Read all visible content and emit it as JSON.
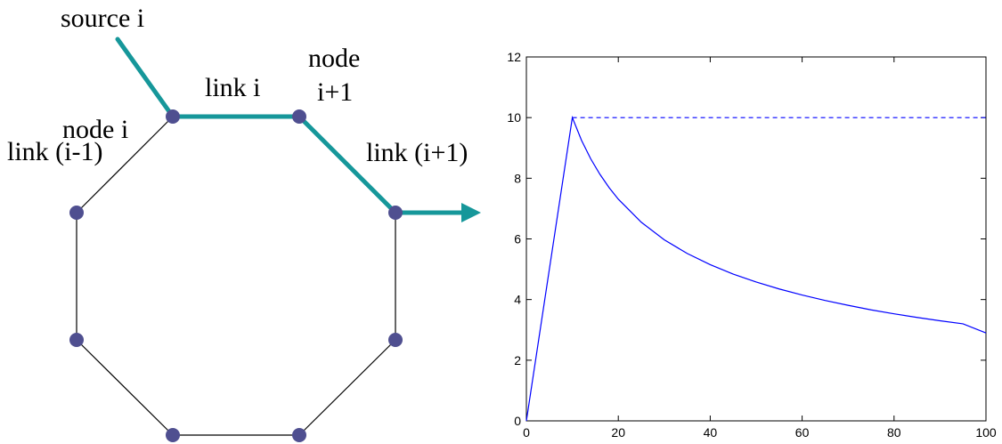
{
  "diagram": {
    "labels": {
      "source": "source i",
      "node_i": "node i",
      "link_i": "link i",
      "node_next_1": "node",
      "node_next_2": "i+1",
      "link_prev": "link (i-1)",
      "link_next": "link (i+1)"
    },
    "colors": {
      "node": "#4f4f90",
      "path": "#16979a",
      "ring": "#000000"
    }
  },
  "chart_data": {
    "type": "line",
    "xlim": [
      0,
      100
    ],
    "ylim": [
      0,
      12
    ],
    "xticks": [
      0,
      20,
      40,
      60,
      80,
      100
    ],
    "yticks": [
      0,
      2,
      4,
      6,
      8,
      10,
      12
    ],
    "grid": false,
    "series": [
      {
        "style": "solid",
        "color": "#0000ff",
        "x": [
          0,
          10,
          12,
          14,
          16,
          18,
          20,
          25,
          30,
          35,
          40,
          45,
          50,
          55,
          60,
          65,
          70,
          75,
          80,
          85,
          90,
          95,
          100
        ],
        "y": [
          0,
          10,
          9.25,
          8.64,
          8.13,
          7.69,
          7.31,
          6.55,
          5.97,
          5.52,
          5.15,
          4.84,
          4.58,
          4.35,
          4.15,
          3.97,
          3.81,
          3.66,
          3.53,
          3.41,
          3.3,
          3.2,
          2.9
        ]
      },
      {
        "style": "dashed",
        "color": "#0000ff",
        "x": [
          10,
          100
        ],
        "y": [
          10,
          10
        ]
      }
    ]
  }
}
